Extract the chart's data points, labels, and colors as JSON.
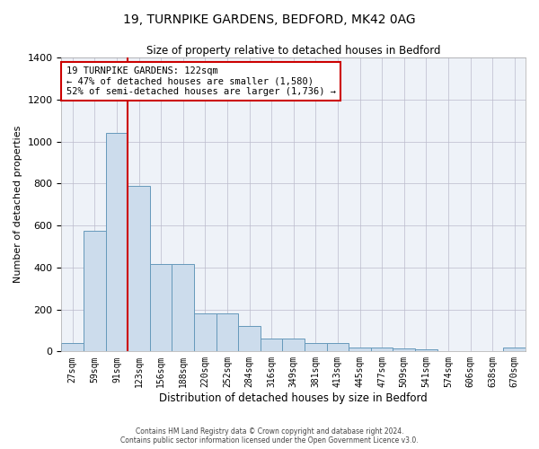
{
  "title1": "19, TURNPIKE GARDENS, BEDFORD, MK42 0AG",
  "title2": "Size of property relative to detached houses in Bedford",
  "xlabel": "Distribution of detached houses by size in Bedford",
  "ylabel": "Number of detached properties",
  "categories": [
    "27sqm",
    "59sqm",
    "91sqm",
    "123sqm",
    "156sqm",
    "188sqm",
    "220sqm",
    "252sqm",
    "284sqm",
    "316sqm",
    "349sqm",
    "381sqm",
    "413sqm",
    "445sqm",
    "477sqm",
    "509sqm",
    "541sqm",
    "574sqm",
    "606sqm",
    "638sqm",
    "670sqm"
  ],
  "values": [
    40,
    575,
    1040,
    790,
    415,
    415,
    180,
    180,
    120,
    60,
    60,
    40,
    40,
    20,
    20,
    15,
    8,
    0,
    0,
    0,
    20
  ],
  "bar_color": "#ccdcec",
  "bar_edge_color": "#6699bb",
  "vline_color": "#cc0000",
  "ylim": [
    0,
    1400
  ],
  "yticks": [
    0,
    200,
    400,
    600,
    800,
    1000,
    1200,
    1400
  ],
  "annotation_line1": "19 TURNPIKE GARDENS: 122sqm",
  "annotation_line2": "← 47% of detached houses are smaller (1,580)",
  "annotation_line3": "52% of semi-detached houses are larger (1,736) →",
  "annotation_box_color": "#ffffff",
  "annotation_border_color": "#cc0000",
  "footnote1": "Contains HM Land Registry data © Crown copyright and database right 2024.",
  "footnote2": "Contains public sector information licensed under the Open Government Licence v3.0.",
  "plot_bg_color": "#eef2f8"
}
